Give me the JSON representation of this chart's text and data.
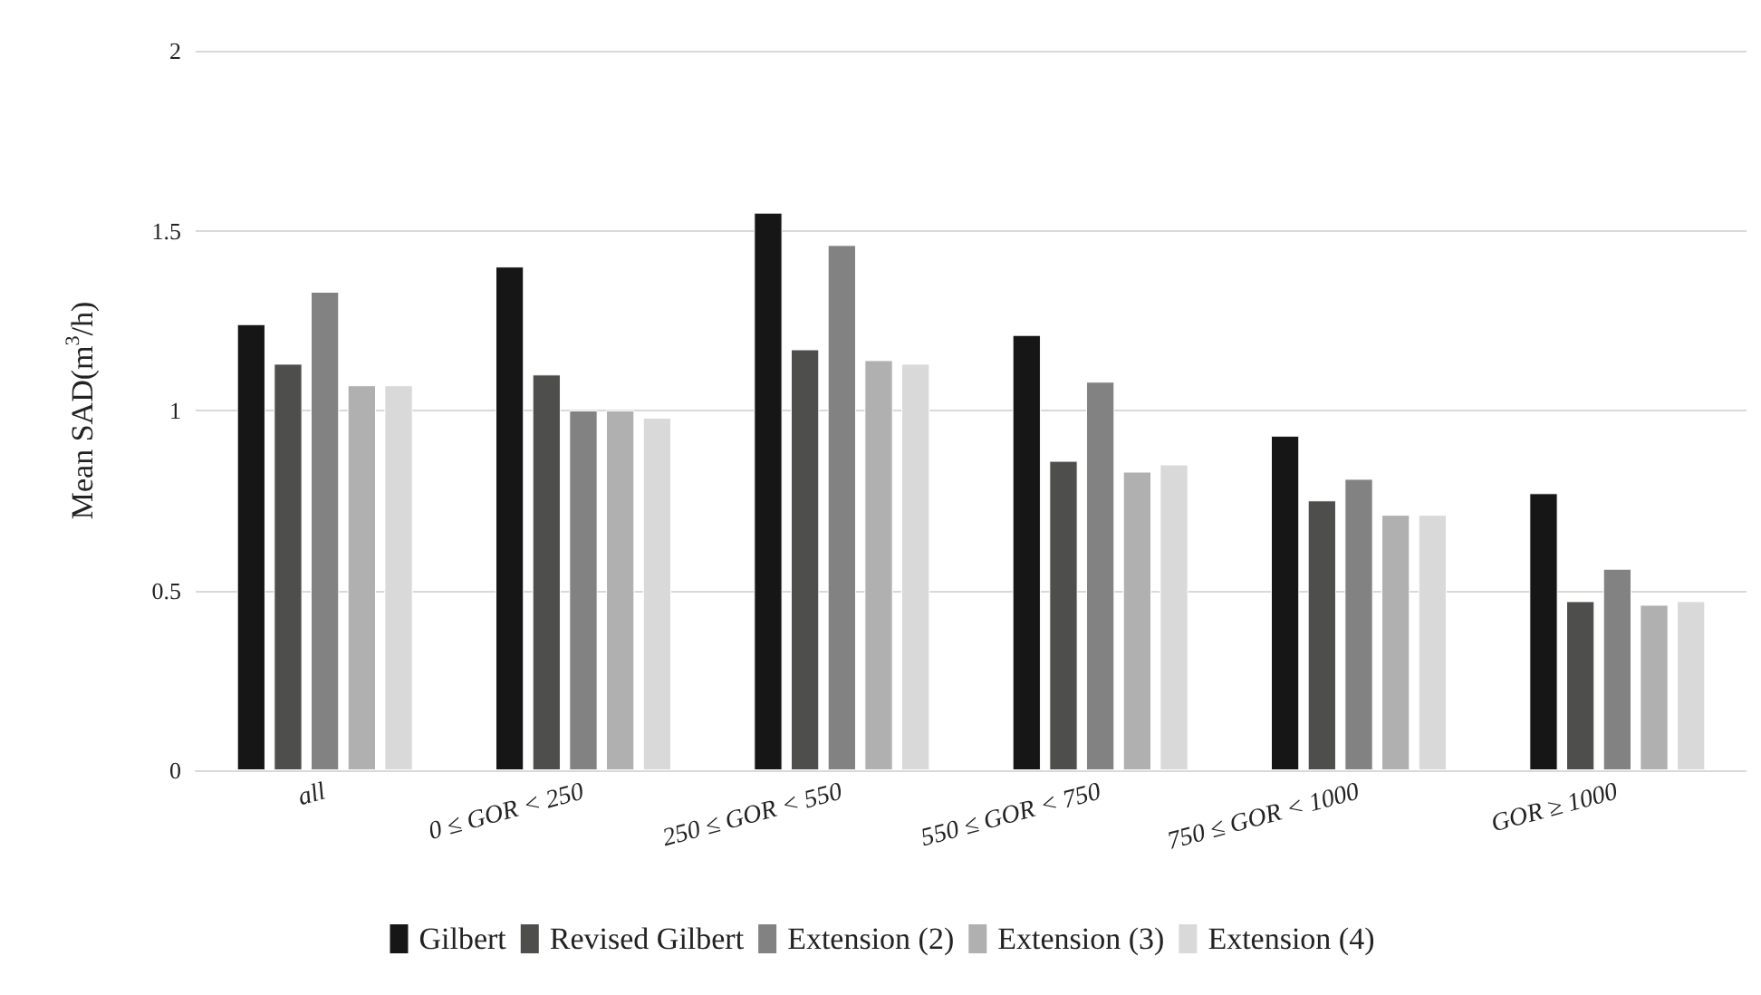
{
  "chart_data": {
    "type": "bar",
    "ylabel": "Mean SAD(m$^{3}$/h)",
    "categories": [
      "all",
      "0 ≤ GOR < 250",
      "250 ≤ GOR < 550",
      "550 ≤ GOR < 750",
      "750 ≤ GOR < 1000",
      "GOR ≥ 1000"
    ],
    "series": [
      {
        "name": "Gilbert",
        "color": "#161616",
        "values": [
          1.24,
          1.4,
          1.55,
          1.21,
          0.93,
          0.77
        ]
      },
      {
        "name": "Revised Gilbert",
        "color": "#4e4e4c",
        "values": [
          1.13,
          1.1,
          1.17,
          0.86,
          0.75,
          0.47
        ]
      },
      {
        "name": "Extension (2)",
        "color": "#828282",
        "values": [
          1.33,
          1.0,
          1.46,
          1.08,
          0.81,
          0.56
        ]
      },
      {
        "name": "Extension (3)",
        "color": "#b0b0b0",
        "values": [
          1.07,
          1.0,
          1.14,
          0.83,
          0.71,
          0.46
        ]
      },
      {
        "name": "Extension (4)",
        "color": "#d9d9d9",
        "values": [
          1.07,
          0.98,
          1.13,
          0.85,
          0.71,
          0.47
        ]
      }
    ],
    "ylim": [
      0,
      2
    ],
    "yticks": [
      0,
      0.5,
      1,
      1.5,
      2
    ],
    "grid": "y",
    "legend": "bottom"
  }
}
